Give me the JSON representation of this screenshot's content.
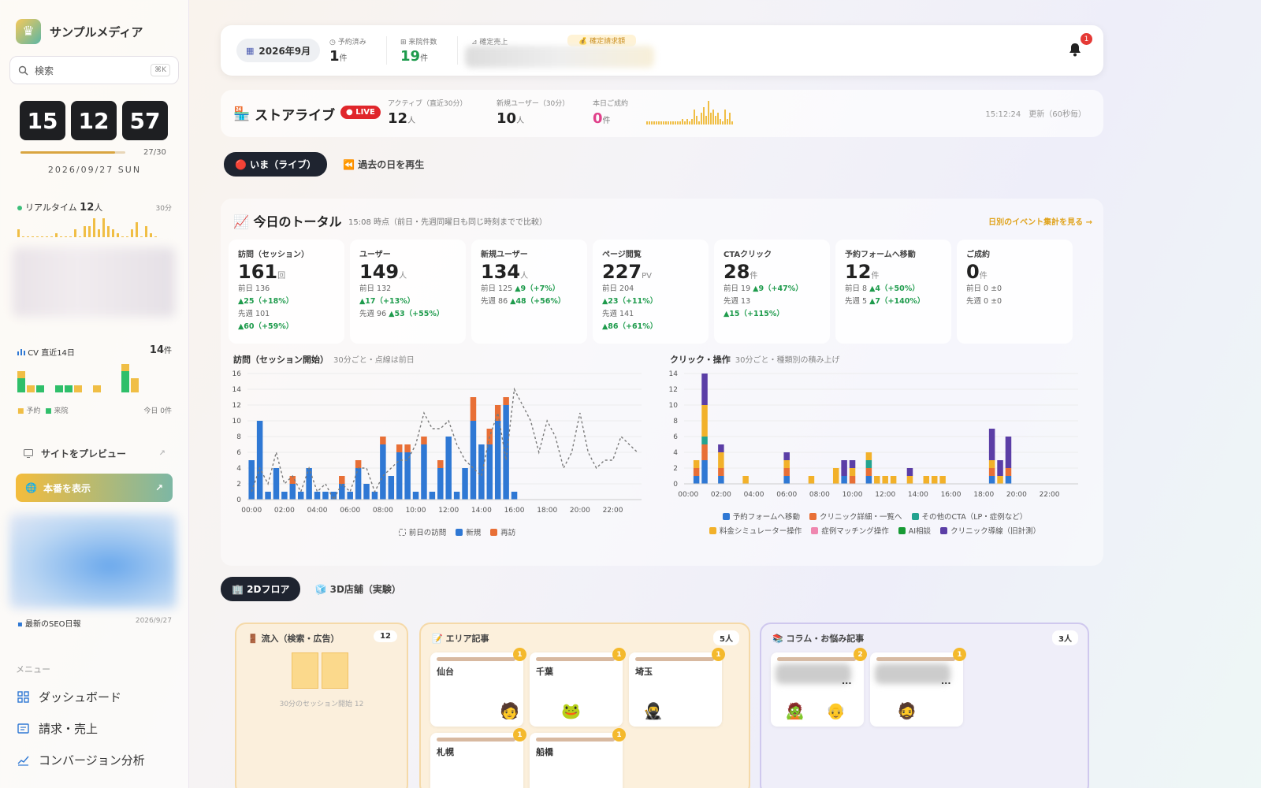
{
  "sidebar": {
    "brand_name": "サンプルメディア",
    "search_placeholder": "検索",
    "search_shortcut": "⌘K",
    "clock": {
      "h": "15",
      "m": "12",
      "s": "57",
      "progress": 0.9,
      "count": "27/30",
      "date": "2026/09/27 SUN"
    },
    "realtime": {
      "label": "リアルタイム",
      "value": "12",
      "unit": "人",
      "window": "30分",
      "bars": [
        2,
        0,
        0,
        0,
        0,
        0,
        0,
        0,
        1,
        0,
        0,
        0,
        2,
        0,
        3,
        3,
        5,
        2,
        5,
        3,
        2,
        1,
        0,
        0,
        2,
        4,
        0,
        3,
        1,
        0
      ]
    },
    "cv": {
      "label": "CV 直近14日",
      "value": "14",
      "unit": "件",
      "legend_reserve": "予約",
      "legend_visit": "来院",
      "today": "今日 0件",
      "bars": [
        {
          "r": 1,
          "v": 2
        },
        {
          "r": 1,
          "v": 0
        },
        {
          "r": 0,
          "v": 1
        },
        {
          "r": 0,
          "v": 0
        },
        {
          "r": 0,
          "v": 1
        },
        {
          "r": 0,
          "v": 1
        },
        {
          "r": 1,
          "v": 0
        },
        {
          "r": 0,
          "v": 0
        },
        {
          "r": 1,
          "v": 0
        },
        {
          "r": 0,
          "v": 0
        },
        {
          "r": 0,
          "v": 0
        },
        {
          "r": 1,
          "v": 3
        },
        {
          "r": 2,
          "v": 0
        },
        {
          "r": 0,
          "v": 0
        }
      ]
    },
    "preview_label": "サイトをプレビュー",
    "production_label": "本番を表示",
    "seo_label": "最新のSEO日報",
    "seo_date": "2026/9/27",
    "menu_label": "メニュー",
    "menu": [
      "ダッシュボード",
      "請求・売上",
      "コンバージョン分析"
    ]
  },
  "topbar": {
    "month": "2026年9月",
    "reserved": {
      "label": "予約済み",
      "value": "1",
      "unit": "件"
    },
    "visits": {
      "label": "来院件数",
      "value": "19",
      "unit": "件"
    },
    "sales_label": "確定売上",
    "billing_label": "確定請求額",
    "notification_count": "1"
  },
  "live": {
    "title": "ストアライブ",
    "badge": "LIVE",
    "active": {
      "label": "アクティブ（直近30分）",
      "value": "12",
      "unit": "人"
    },
    "new_users": {
      "label": "新規ユーザー（30分）",
      "value": "10",
      "unit": "人"
    },
    "conversions": {
      "label": "本日ご成約",
      "value": "0",
      "unit": "件"
    },
    "spark": [
      1,
      1,
      1,
      1,
      1,
      1,
      1,
      1,
      1,
      1,
      1,
      1,
      1,
      1,
      1,
      2,
      1,
      2,
      1,
      2,
      5,
      3,
      1,
      4,
      6,
      3,
      8,
      4,
      5,
      3,
      4,
      2,
      1,
      5,
      2,
      4,
      1
    ],
    "updated": "15:12:24　更新（60秒毎）"
  },
  "mode_tabs": {
    "live": "いま（ライブ）",
    "replay": "過去の日を再生"
  },
  "totals": {
    "title": "今日のトータル",
    "subtitle": "15:08 時点（前日・先週同曜日も同じ時刻までで比較）",
    "link": "日別のイベント集計を見る →",
    "cards": [
      {
        "label": "訪問（セッション）",
        "value": "161",
        "unit": "回",
        "lines": [
          [
            "前日 136",
            ""
          ],
          [
            "",
            "▲25（+18%）"
          ],
          [
            "先週 101",
            ""
          ],
          [
            "",
            "▲60（+59%）"
          ]
        ]
      },
      {
        "label": "ユーザー",
        "value": "149",
        "unit": "人",
        "lines": [
          [
            "前日 132",
            ""
          ],
          [
            "",
            "▲17（+13%）"
          ],
          [
            "先週 96 ",
            "▲53（+55%）"
          ]
        ]
      },
      {
        "label": "新規ユーザー",
        "value": "134",
        "unit": "人",
        "lines": [
          [
            "前日 125 ",
            "▲9（+7%）"
          ],
          [
            "先週 86 ",
            "▲48（+56%）"
          ]
        ]
      },
      {
        "label": "ページ閲覧",
        "value": "227",
        "unit": "PV",
        "lines": [
          [
            "前日 204",
            ""
          ],
          [
            "",
            "▲23（+11%）"
          ],
          [
            "先週 141",
            ""
          ],
          [
            "",
            "▲86（+61%）"
          ]
        ]
      },
      {
        "label": "CTAクリック",
        "value": "28",
        "unit": "件",
        "lines": [
          [
            "前日 19 ",
            "▲9（+47%）"
          ],
          [
            "先週 13",
            ""
          ],
          [
            "",
            "▲15（+115%）"
          ]
        ]
      },
      {
        "label": "予約フォームへ移動",
        "value": "12",
        "unit": "件",
        "lines": [
          [
            "前日 8 ",
            "▲4（+50%）"
          ],
          [
            "先週 5 ",
            "▲7（+140%）"
          ]
        ]
      },
      {
        "label": "ご成約",
        "value": "0",
        "unit": "件",
        "lines": [
          [
            "前日 0 ±0",
            ""
          ],
          [
            "先週 0 ±0",
            ""
          ]
        ]
      }
    ]
  },
  "chart_data": [
    {
      "type": "bar",
      "title": "訪問（セッション開始）",
      "subtitle": "30分ごと・点線は前日",
      "ylim": [
        0,
        16
      ],
      "yticks": [
        0,
        2,
        4,
        6,
        8,
        10,
        12,
        14,
        16
      ],
      "xticks": [
        "00:00",
        "02:00",
        "04:00",
        "06:00",
        "08:00",
        "10:00",
        "12:00",
        "14:00",
        "16:00",
        "18:00",
        "20:00",
        "22:00"
      ],
      "series": [
        {
          "name": "新規",
          "color": "#2f78d4",
          "values": [
            5,
            10,
            1,
            4,
            1,
            2,
            1,
            4,
            1,
            1,
            1,
            2,
            1,
            4,
            2,
            1,
            7,
            3,
            6,
            6,
            1,
            7,
            1,
            4,
            8,
            1,
            4,
            10,
            7,
            7,
            10,
            12,
            1,
            0,
            0,
            0,
            0,
            0,
            0,
            0,
            0,
            0,
            0,
            0,
            0,
            0,
            0,
            0
          ]
        },
        {
          "name": "再訪",
          "color": "#e86f36",
          "values": [
            0,
            0,
            0,
            0,
            0,
            1,
            0,
            0,
            0,
            0,
            0,
            1,
            0,
            1,
            0,
            0,
            1,
            0,
            1,
            1,
            0,
            1,
            0,
            1,
            0,
            0,
            0,
            3,
            0,
            2,
            2,
            1,
            0,
            0,
            0,
            0,
            0,
            0,
            0,
            0,
            0,
            0,
            0,
            0,
            0,
            0,
            0,
            0
          ]
        },
        {
          "name": "前日の訪問",
          "color": "#7a7a7a",
          "values": [
            1,
            4,
            2,
            6,
            2,
            3,
            1,
            4,
            1,
            2,
            0,
            2,
            1,
            4,
            4,
            1,
            3,
            4,
            5,
            5,
            7,
            11,
            9,
            9,
            10,
            7,
            5,
            4,
            3,
            8,
            11,
            5,
            14,
            12,
            10,
            6,
            10,
            8,
            4,
            6,
            11,
            6,
            4,
            5,
            5,
            8,
            7,
            6
          ]
        }
      ],
      "legend": [
        "前日の訪問",
        "新規",
        "再訪"
      ]
    },
    {
      "type": "bar",
      "title": "クリック・操作",
      "subtitle": "30分ごと・種類別の積み上げ",
      "ylim": [
        0,
        14
      ],
      "yticks": [
        0,
        2,
        4,
        6,
        8,
        10,
        12,
        14
      ],
      "xticks": [
        "00:00",
        "02:00",
        "04:00",
        "06:00",
        "08:00",
        "10:00",
        "12:00",
        "14:00",
        "16:00",
        "18:00",
        "20:00",
        "22:00"
      ],
      "series": [
        {
          "name": "予約フォームへ移動",
          "color": "#2f78d4",
          "values": [
            0,
            1,
            3,
            0,
            1,
            0,
            0,
            0,
            0,
            0,
            0,
            0,
            1,
            0,
            0,
            0,
            0,
            0,
            0,
            1,
            0,
            0,
            1,
            0,
            0,
            0,
            0,
            0,
            0,
            0,
            0,
            0,
            0,
            0,
            0,
            0,
            0,
            1,
            0,
            1,
            0,
            0,
            0,
            0,
            0,
            0,
            0,
            0
          ]
        },
        {
          "name": "クリニック詳細・一覧へ",
          "color": "#e86f36",
          "values": [
            0,
            1,
            2,
            0,
            1,
            0,
            0,
            0,
            0,
            0,
            0,
            0,
            1,
            0,
            0,
            0,
            0,
            0,
            0,
            0,
            1,
            0,
            1,
            0,
            0,
            0,
            0,
            0,
            0,
            0,
            0,
            0,
            0,
            0,
            0,
            0,
            0,
            1,
            0,
            1,
            0,
            0,
            0,
            0,
            0,
            0,
            0,
            0
          ]
        },
        {
          "name": "その他のCTA（LP・症例など）",
          "color": "#23a38f",
          "values": [
            0,
            0,
            1,
            0,
            0,
            0,
            0,
            0,
            0,
            0,
            0,
            0,
            0,
            0,
            0,
            0,
            0,
            0,
            0,
            0,
            0,
            0,
            1,
            0,
            0,
            0,
            0,
            0,
            0,
            0,
            0,
            0,
            0,
            0,
            0,
            0,
            0,
            0,
            0,
            0,
            0,
            0,
            0,
            0,
            0,
            0,
            0,
            0
          ]
        },
        {
          "name": "料金シミュレーター操作",
          "color": "#f2b12a",
          "values": [
            0,
            1,
            4,
            0,
            2,
            0,
            0,
            1,
            0,
            0,
            0,
            0,
            1,
            0,
            0,
            1,
            0,
            0,
            2,
            0,
            1,
            0,
            1,
            1,
            1,
            1,
            0,
            1,
            0,
            1,
            1,
            1,
            0,
            0,
            0,
            0,
            0,
            1,
            1,
            0,
            0,
            0,
            0,
            0,
            0,
            0,
            0,
            0
          ]
        },
        {
          "name": "症例マッチング操作",
          "color": "#ef87b0",
          "values": [
            0,
            0,
            0,
            0,
            0,
            0,
            0,
            0,
            0,
            0,
            0,
            0,
            0,
            0,
            0,
            0,
            0,
            0,
            0,
            0,
            0,
            0,
            0,
            0,
            0,
            0,
            0,
            0,
            0,
            0,
            0,
            0,
            0,
            0,
            0,
            0,
            0,
            0,
            0,
            0,
            0,
            0,
            0,
            0,
            0,
            0,
            0,
            0
          ]
        },
        {
          "name": "AI相談",
          "color": "#179a34",
          "values": [
            0,
            0,
            0,
            0,
            0,
            0,
            0,
            0,
            0,
            0,
            0,
            0,
            0,
            0,
            0,
            0,
            0,
            0,
            0,
            0,
            0,
            0,
            0,
            0,
            0,
            0,
            0,
            0,
            0,
            0,
            0,
            0,
            0,
            0,
            0,
            0,
            0,
            0,
            0,
            0,
            0,
            0,
            0,
            0,
            0,
            0,
            0,
            0
          ]
        },
        {
          "name": "クリニック導線（旧計測）",
          "color": "#5b3ea6",
          "values": [
            0,
            0,
            4,
            0,
            1,
            0,
            0,
            0,
            0,
            0,
            0,
            0,
            1,
            0,
            0,
            0,
            0,
            0,
            0,
            2,
            1,
            0,
            0,
            0,
            0,
            0,
            0,
            1,
            0,
            0,
            0,
            0,
            0,
            0,
            0,
            0,
            0,
            4,
            2,
            4,
            0,
            0,
            0,
            0,
            0,
            0,
            0,
            0
          ]
        }
      ],
      "legend": [
        "予約フォームへ移動",
        "クリニック詳細・一覧へ",
        "その他のCTA（LP・症例など）",
        "料金シミュレーター操作",
        "症例マッチング操作",
        "AI相談",
        "クリニック導線（旧計測）"
      ]
    }
  ],
  "floor_tabs": {
    "flat": "2Dフロア",
    "store3d": "3D店舗（実験）"
  },
  "zones": {
    "inflow": {
      "title": "流入（検索・広告）",
      "count": "12",
      "caption": "30分のセッション開始 12"
    },
    "area": {
      "title": "エリア記事",
      "count": "5人",
      "rooms": [
        {
          "name": "仙台",
          "badge": "1"
        },
        {
          "name": "千葉",
          "badge": "1"
        },
        {
          "name": "埼玉",
          "badge": "1"
        },
        {
          "name": "札幌",
          "badge": "1"
        },
        {
          "name": "船橋",
          "badge": "1"
        }
      ]
    },
    "column": {
      "title": "コラム・お悩み記事",
      "count": "3人",
      "rooms": [
        {
          "name": "...",
          "badge": "2"
        },
        {
          "name": "...",
          "badge": "1"
        }
      ]
    }
  },
  "colors": {
    "accent": "#e0a31c",
    "live_red": "#e0262b",
    "new_blue": "#2f78d4",
    "return_orange": "#e86f36",
    "positive_green": "#1e9b4c"
  },
  "icons": [
    "crown-icon",
    "search-icon",
    "bell-icon",
    "store-icon",
    "chart-icon",
    "preview-icon",
    "globe-icon",
    "external-link-icon",
    "grid-icon",
    "receipt-icon",
    "trend-icon",
    "door-icon",
    "book-icon"
  ]
}
